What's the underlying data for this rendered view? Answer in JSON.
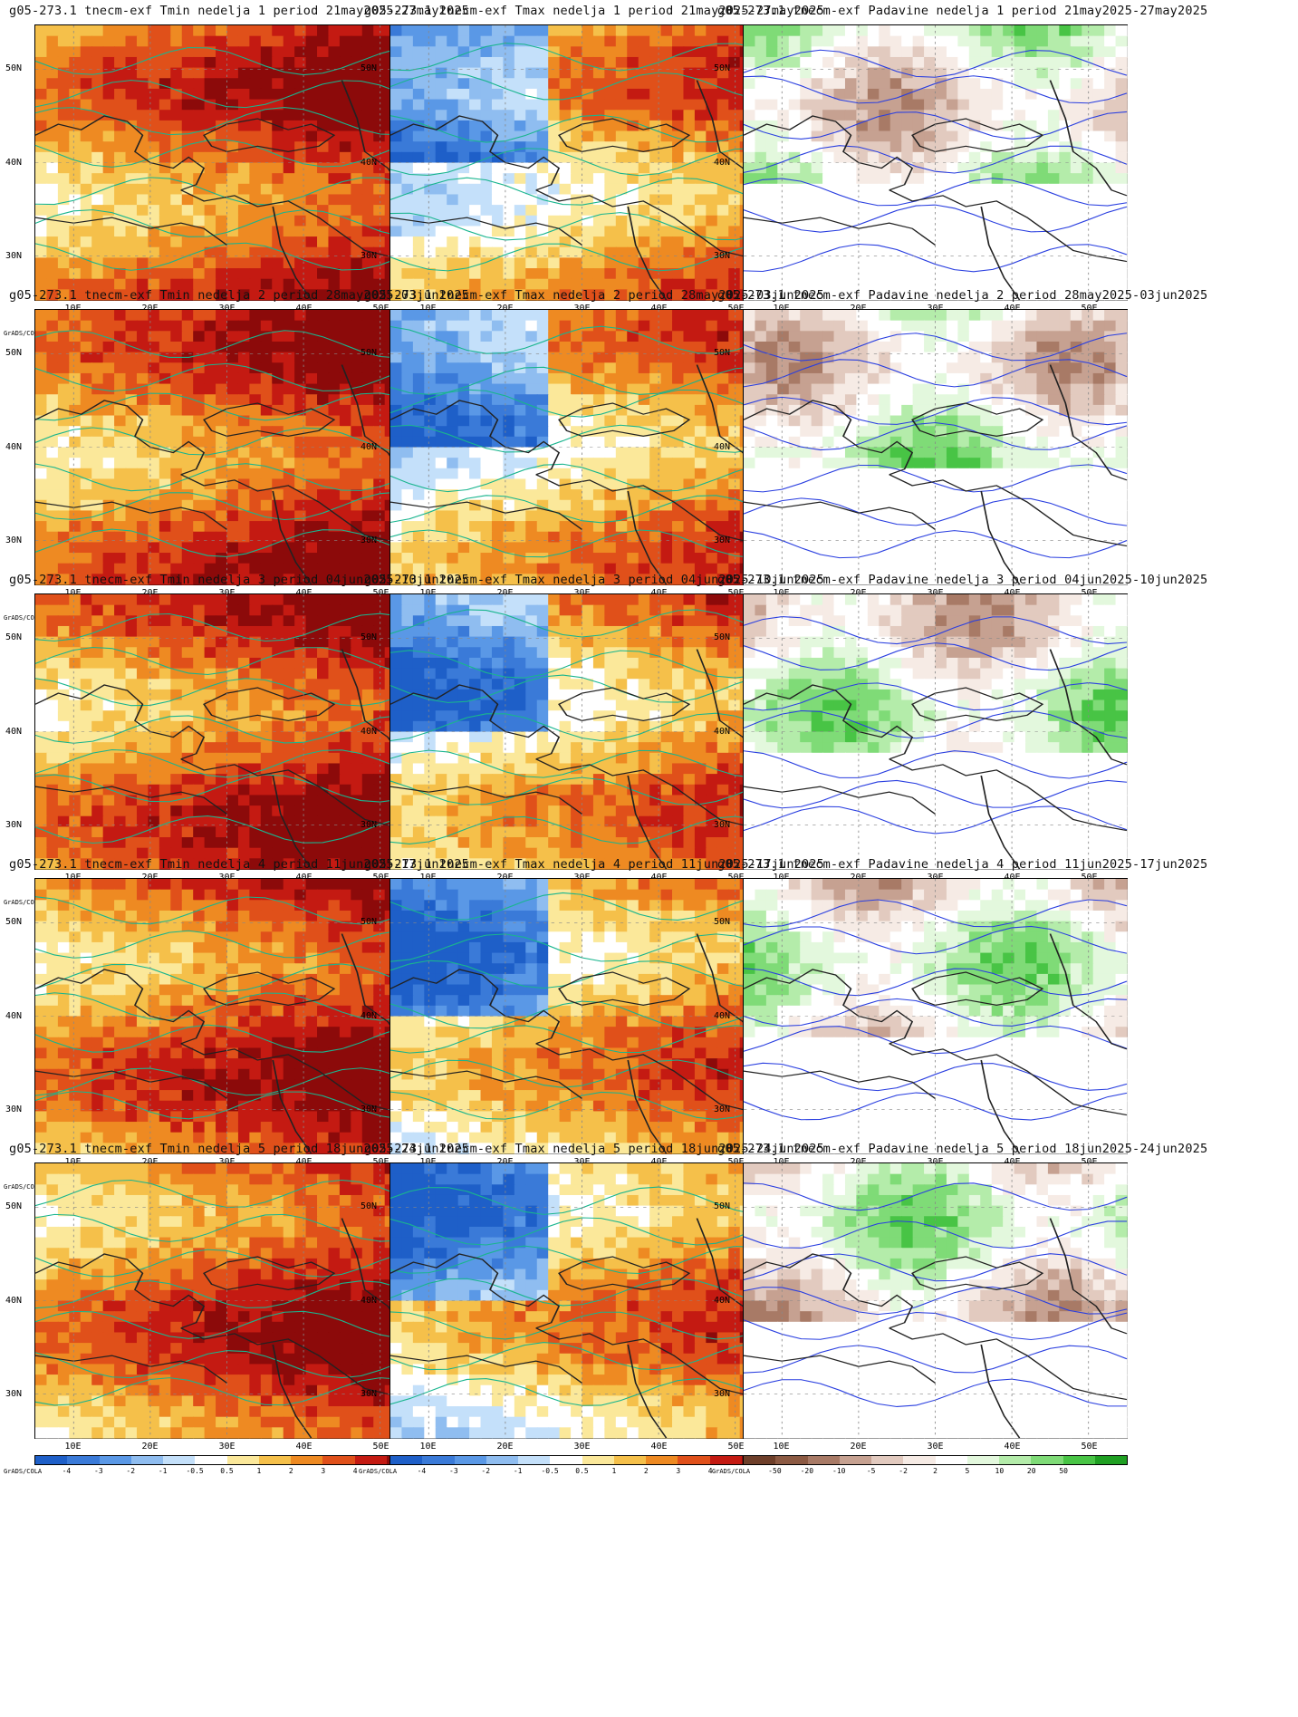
{
  "panels": [
    {
      "title": "g05-273.1 tnecm-exf Tmin nedelja 1 period 21may2025-27may2025",
      "var": "Tmin",
      "week": 1
    },
    {
      "title": "g05-273.1 tnecm-exf Tmax nedelja 1 period 21may2025-27may2025",
      "var": "Tmax",
      "week": 1
    },
    {
      "title": "g05-273.1 tnecm-exf Padavine nedelja 1 period 21may2025-27may2025",
      "var": "Padavine",
      "week": 1
    },
    {
      "title": "g05-273.1 tnecm-exf Tmin nedelja 2 period 28may2025-03jun2025",
      "var": "Tmin",
      "week": 2
    },
    {
      "title": "g05-273.1 tnecm-exf Tmax nedelja 2 period 28may2025-03jun2025",
      "var": "Tmax",
      "week": 2
    },
    {
      "title": "g05-273.1 tnecm-exf Padavine nedelja 2 period 28may2025-03jun2025",
      "var": "Padavine",
      "week": 2
    },
    {
      "title": "g05-273.1 tnecm-exf Tmin nedelja 3 period 04jun2025-10jun2025",
      "var": "Tmin",
      "week": 3
    },
    {
      "title": "g05-273.1 tnecm-exf Tmax nedelja 3 period 04jun2025-10jun2025",
      "var": "Tmax",
      "week": 3
    },
    {
      "title": "g05-273.1 tnecm-exf Padavine nedelja 3 period 04jun2025-10jun2025",
      "var": "Padavine",
      "week": 3
    },
    {
      "title": "g05-273.1 tnecm-exf Tmin nedelja 4 period 11jun2025-17jun2025",
      "var": "Tmin",
      "week": 4
    },
    {
      "title": "g05-273.1 tnecm-exf Tmax nedelja 4 period 11jun2025-17jun2025",
      "var": "Tmax",
      "week": 4
    },
    {
      "title": "g05-273.1 tnecm-exf Padavine nedelja 4 period 11jun2025-17jun2025",
      "var": "Padavine",
      "week": 4
    },
    {
      "title": "g05-273.1 tnecm-exf Tmin nedelja 5 period 18jun2025-24jun2025",
      "var": "Tmin",
      "week": 5
    },
    {
      "title": "g05-273.1 tnecm-exf Tmax nedelja 5 period 18jun2025-24jun2025",
      "var": "Tmax",
      "week": 5
    },
    {
      "title": "g05-273.1 tnecm-exf Padavine nedelja 5 period 18jun2025-24jun2025",
      "var": "Padavine",
      "week": 5
    }
  ],
  "axes": {
    "x_ticks": [
      "10E",
      "20E",
      "30E",
      "40E",
      "50E"
    ],
    "y_ticks": [
      "50N",
      "40N",
      "30N"
    ]
  },
  "colorbars": {
    "temperature": {
      "labels": [
        "-4",
        "-3",
        "-2",
        "-1",
        "-0.5",
        "0.5",
        "1",
        "2",
        "3",
        "4"
      ],
      "colors": [
        "#1e5fc8",
        "#3a7ad8",
        "#5a98e6",
        "#8fbdf0",
        "#c4e0fa",
        "#ffffff",
        "#fbe89a",
        "#f5c04a",
        "#ee8a22",
        "#e0501a",
        "#c41a12",
        "#8c0a0a"
      ]
    },
    "precipitation": {
      "labels": [
        "-50",
        "-20",
        "-10",
        "-5",
        "-2",
        "2",
        "5",
        "10",
        "20",
        "50"
      ],
      "colors": [
        "#6e3f2a",
        "#8c5a43",
        "#a87a66",
        "#c6a191",
        "#e2cabf",
        "#f6ebe5",
        "#ffffff",
        "#e3f8dd",
        "#b4ecaa",
        "#7fdb77",
        "#48c445",
        "#1f9f22"
      ]
    }
  },
  "credit": "GrADS/COLA"
}
